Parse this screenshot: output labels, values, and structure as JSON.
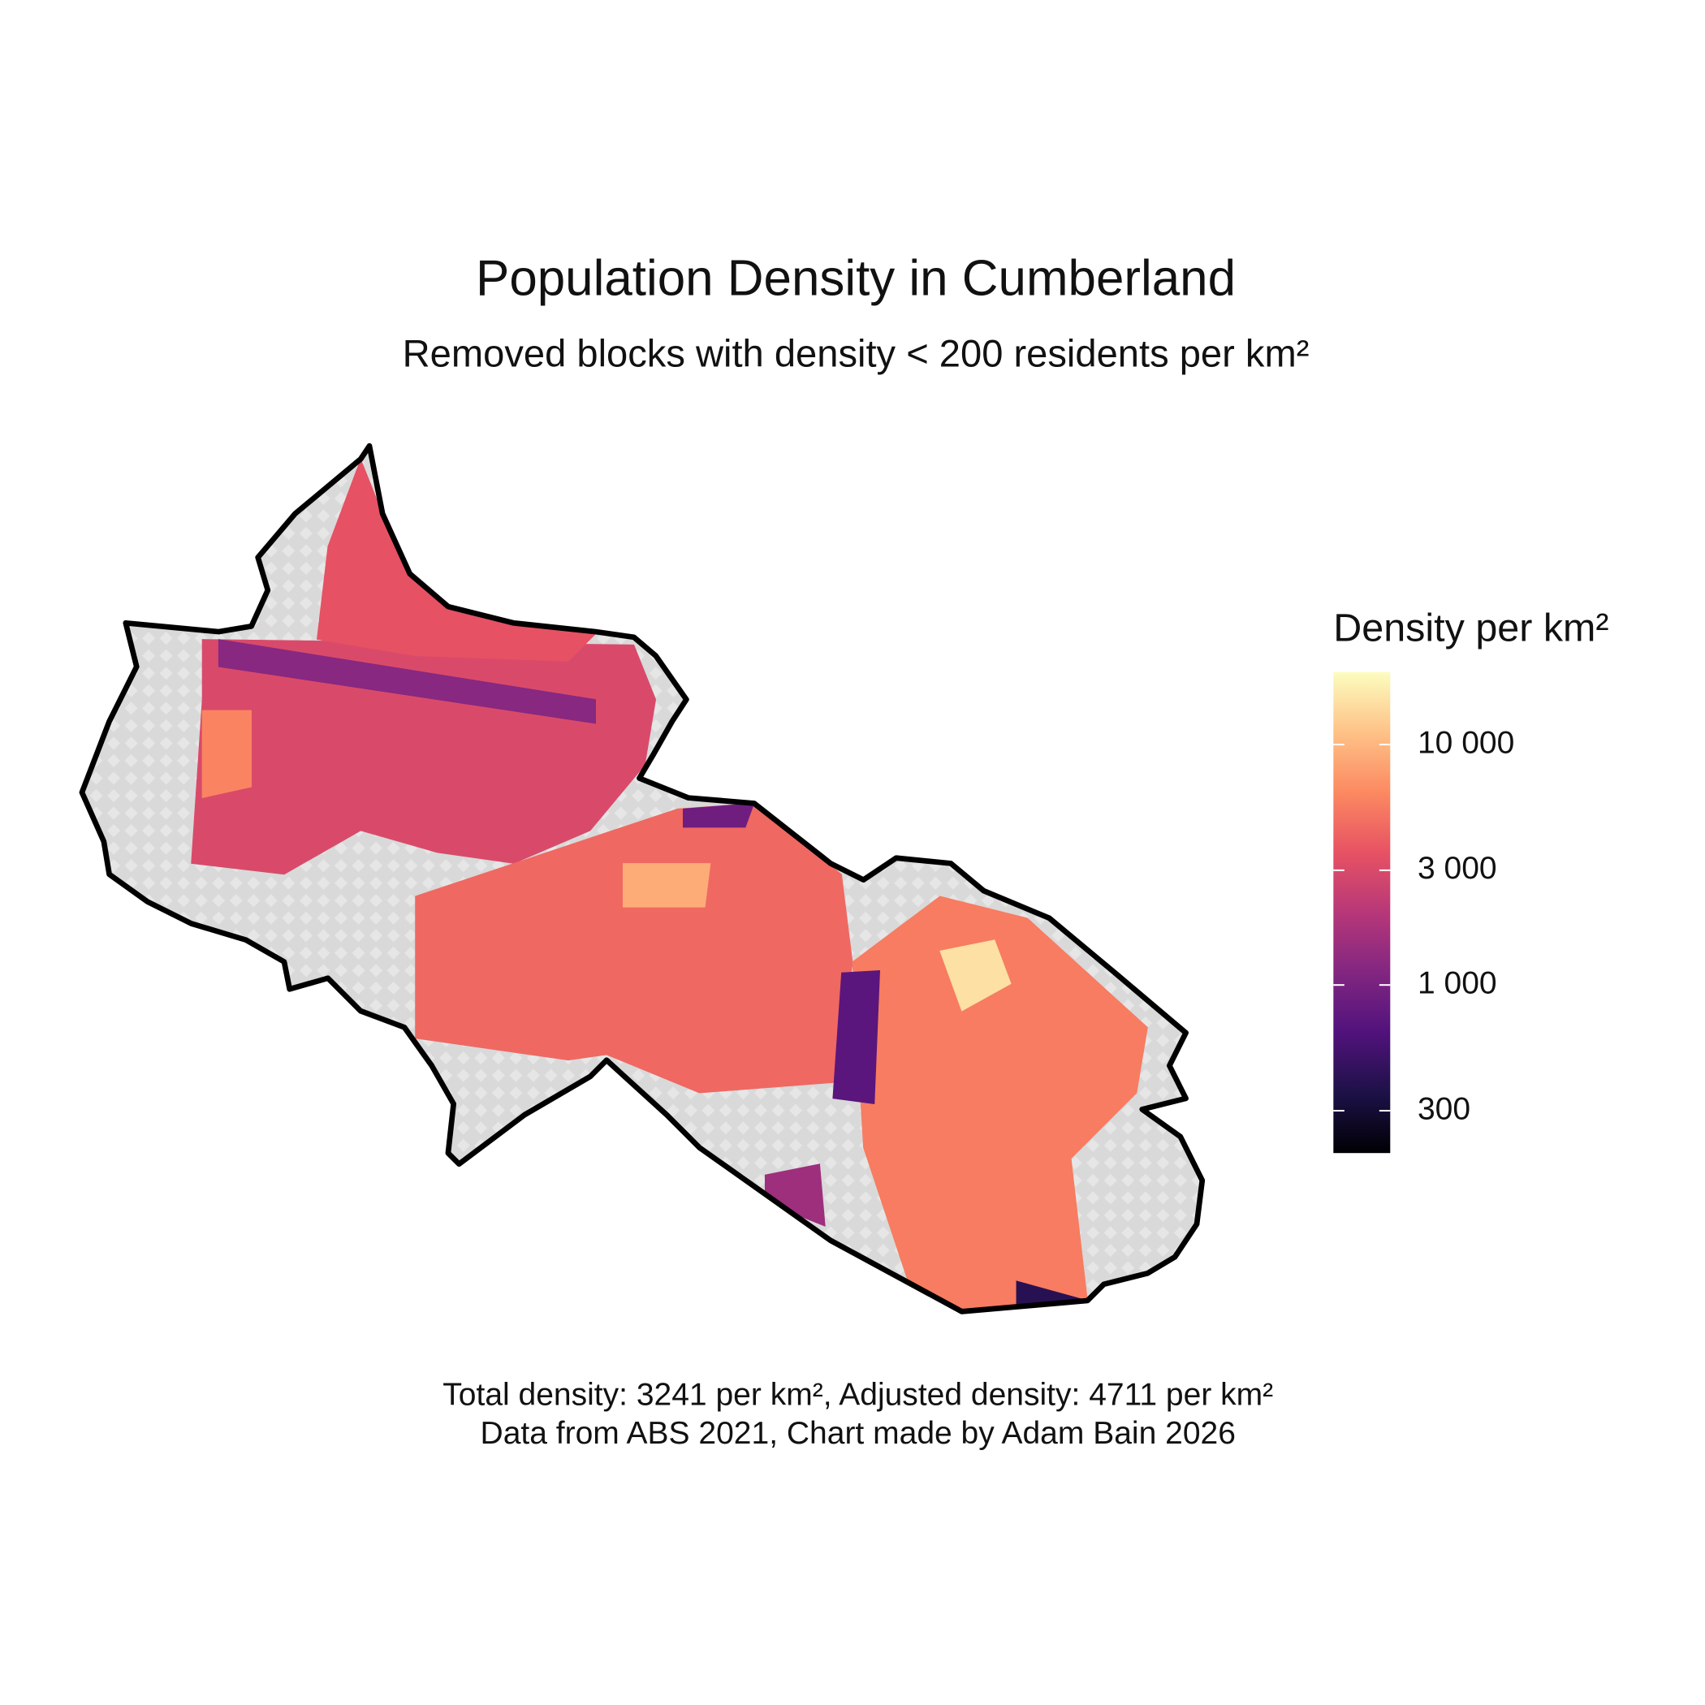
{
  "chart_data": {
    "type": "choropleth",
    "title": "Population Density in Cumberland",
    "subtitle": "Removed blocks with density < 200 residents per km²",
    "caption": [
      "Total density: 3241 per km², Adjusted density: 4711 per km²",
      "Data from ABS 2021, Chart made by Adam Bain 2026"
    ],
    "values": [
      3000,
      3500,
      1200,
      4500,
      5500,
      700,
      15000,
      9000,
      400,
      1500,
      900,
      6000
    ],
    "legend": {
      "title": "Density per km²",
      "log": true,
      "lim": [
        200,
        20000
      ],
      "colors": [
        "#000004",
        "#1d1147",
        "#51127c",
        "#822681",
        "#b73779",
        "#e75263",
        "#fc8961",
        "#fec287",
        "#fcfdbf"
      ],
      "ticks": [
        {
          "value": 300,
          "label": "300"
        },
        {
          "value": 1000,
          "label": "1 000"
        },
        {
          "value": 3000,
          "label": "3 000"
        },
        {
          "value": 10000,
          "label": "10 000"
        }
      ]
    }
  }
}
